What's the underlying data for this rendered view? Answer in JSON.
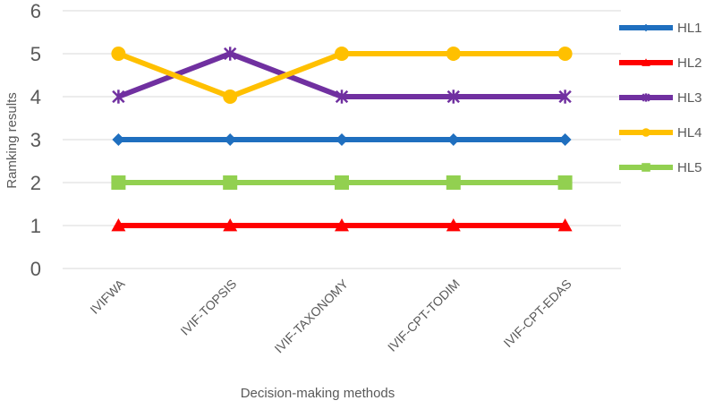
{
  "chart_data": {
    "type": "line",
    "title": "",
    "xlabel": "Decision-making methods",
    "ylabel": "Ramking results",
    "categories": [
      "IVIFWA",
      "IVIF-TOPSIS",
      "IVIF-TAXONOMY",
      "IVIF-CPT-TODIM",
      "IVIF-CPT-EDAS"
    ],
    "ylim": [
      0,
      6
    ],
    "yticks": [
      "0",
      "1",
      "2",
      "3",
      "4",
      "5",
      "6"
    ],
    "grid": true,
    "legend_position": "right",
    "series": [
      {
        "name": "HL1",
        "values": [
          3,
          3,
          3,
          3,
          3
        ],
        "color": "#1f6fbf",
        "marker": "diamond"
      },
      {
        "name": "HL2",
        "values": [
          1,
          1,
          1,
          1,
          1
        ],
        "color": "#ff0000",
        "marker": "triangle"
      },
      {
        "name": "HL3",
        "values": [
          4,
          5,
          4,
          4,
          4
        ],
        "color": "#7030a0",
        "marker": "star"
      },
      {
        "name": "HL4",
        "values": [
          5,
          4,
          5,
          5,
          5
        ],
        "color": "#ffc000",
        "marker": "circle"
      },
      {
        "name": "HL5",
        "values": [
          2,
          2,
          2,
          2,
          2
        ],
        "color": "#92d050",
        "marker": "square"
      }
    ]
  }
}
